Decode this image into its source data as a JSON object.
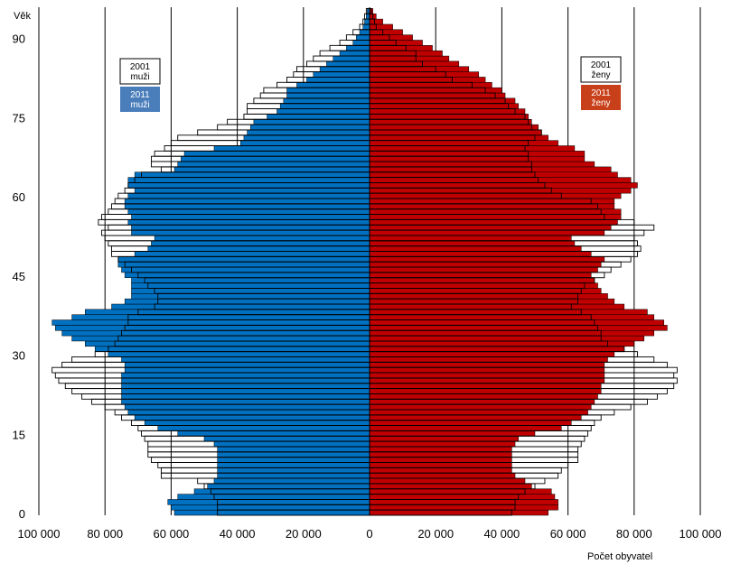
{
  "chart_data": {
    "type": "bar",
    "subtype": "population-pyramid",
    "title": "",
    "ylabel": "Věk",
    "xlabel": "Počet obyvatel",
    "xlim": [
      -100000,
      100000
    ],
    "ylim": [
      0,
      95
    ],
    "x_ticks": [
      -100000,
      -80000,
      -60000,
      -40000,
      -20000,
      0,
      20000,
      40000,
      60000,
      80000,
      100000
    ],
    "x_tick_labels": [
      "100 000",
      "80 000",
      "60 000",
      "40 000",
      "20 000",
      "0",
      "20 000",
      "40 000",
      "60 000",
      "80 000",
      "100 000"
    ],
    "y_ticks": [
      0,
      15,
      30,
      45,
      60,
      75,
      90
    ],
    "y_tick_labels": [
      "0",
      "15",
      "30",
      "45",
      "60",
      "75",
      "90"
    ],
    "grid": "vertical",
    "ages": [
      0,
      1,
      2,
      3,
      4,
      5,
      6,
      7,
      8,
      9,
      10,
      11,
      12,
      13,
      14,
      15,
      16,
      17,
      18,
      19,
      20,
      21,
      22,
      23,
      24,
      25,
      26,
      27,
      28,
      29,
      30,
      31,
      32,
      33,
      34,
      35,
      36,
      37,
      38,
      39,
      40,
      41,
      42,
      43,
      44,
      45,
      46,
      47,
      48,
      49,
      50,
      51,
      52,
      53,
      54,
      55,
      56,
      57,
      58,
      59,
      60,
      61,
      62,
      63,
      64,
      65,
      66,
      67,
      68,
      69,
      70,
      71,
      72,
      73,
      74,
      75,
      76,
      77,
      78,
      79,
      80,
      81,
      82,
      83,
      84,
      85,
      86,
      87,
      88,
      89,
      90,
      91,
      92,
      93,
      94,
      95
    ],
    "series": [
      {
        "name": "2011 muži",
        "side": "left",
        "color": "#0070c0",
        "values": [
          59000,
          60000,
          61000,
          58000,
          53000,
          49000,
          47000,
          46000,
          46000,
          46000,
          46000,
          46000,
          46000,
          47000,
          50000,
          58000,
          64000,
          68000,
          71000,
          73000,
          74000,
          75000,
          75000,
          75000,
          75000,
          75000,
          75000,
          74000,
          74000,
          75000,
          79000,
          83000,
          86000,
          90000,
          93000,
          95000,
          96000,
          90000,
          86000,
          78000,
          74000,
          72000,
          72000,
          72000,
          72000,
          74000,
          75000,
          76000,
          76000,
          71000,
          67000,
          66000,
          65000,
          72000,
          72000,
          73000,
          72000,
          73000,
          74000,
          74000,
          73000,
          71000,
          73000,
          73000,
          71000,
          59000,
          58000,
          57000,
          56000,
          47000,
          39000,
          38000,
          37000,
          36000,
          35000,
          31000,
          28000,
          27000,
          26000,
          25000,
          25000,
          22000,
          19000,
          17000,
          15000,
          13000,
          11000,
          9000,
          7000,
          5000,
          4000,
          3000,
          2000,
          1500,
          1000,
          700
        ]
      },
      {
        "name": "2001 muži",
        "side": "left",
        "color": "#ffffff",
        "values": [
          46000,
          46000,
          46000,
          47000,
          48000,
          50000,
          52000,
          63000,
          63000,
          64000,
          66000,
          67000,
          67000,
          67000,
          68000,
          69000,
          70000,
          72000,
          75000,
          77000,
          80000,
          84000,
          87000,
          90000,
          92000,
          94000,
          95000,
          96000,
          93000,
          90000,
          83000,
          79000,
          77000,
          76000,
          75000,
          74000,
          73000,
          73000,
          70000,
          65000,
          64000,
          64000,
          65000,
          67000,
          68000,
          70000,
          72000,
          74000,
          76000,
          78000,
          78000,
          79000,
          80000,
          81000,
          79000,
          82000,
          81000,
          79000,
          78000,
          77000,
          76000,
          74000,
          73000,
          71000,
          69000,
          63000,
          66000,
          66000,
          65000,
          62000,
          60000,
          58000,
          52000,
          46000,
          43000,
          38000,
          37000,
          37000,
          35000,
          33000,
          32000,
          28000,
          25000,
          23000,
          22000,
          19000,
          17000,
          15000,
          12000,
          9000,
          7000,
          5000,
          3000,
          2000,
          1500,
          1000
        ]
      },
      {
        "name": "2011 ženy",
        "side": "right",
        "color": "#c00000",
        "values": [
          54000,
          57000,
          57000,
          56000,
          55000,
          49000,
          47000,
          44000,
          43000,
          43000,
          43000,
          43000,
          43000,
          44000,
          45000,
          50000,
          58000,
          61000,
          64000,
          66000,
          67000,
          68000,
          69000,
          70000,
          70000,
          71000,
          71000,
          71000,
          71000,
          72000,
          74000,
          77000,
          80000,
          83000,
          86000,
          90000,
          89000,
          86000,
          84000,
          77000,
          74000,
          72000,
          70000,
          69000,
          68000,
          67000,
          69000,
          70000,
          71000,
          67000,
          64000,
          62000,
          61000,
          71000,
          73000,
          75000,
          76000,
          76000,
          74000,
          74000,
          76000,
          79000,
          81000,
          79000,
          75000,
          73000,
          68000,
          65000,
          65000,
          62000,
          57000,
          54000,
          52000,
          51000,
          49000,
          48000,
          47000,
          45000,
          44000,
          41000,
          40000,
          37000,
          35000,
          33000,
          30000,
          27000,
          24000,
          22000,
          19000,
          16000,
          13000,
          10000,
          7000,
          4000,
          2000,
          1000
        ]
      },
      {
        "name": "2001 ženy",
        "side": "right",
        "color": "#ffffff",
        "values": [
          43000,
          44000,
          44000,
          45000,
          47000,
          50000,
          53000,
          57000,
          58000,
          60000,
          63000,
          63000,
          63000,
          64000,
          65000,
          66000,
          67000,
          68000,
          70000,
          74000,
          79000,
          84000,
          87000,
          90000,
          92000,
          93000,
          92000,
          93000,
          90000,
          86000,
          81000,
          77000,
          72000,
          70000,
          70000,
          69000,
          68000,
          67000,
          64000,
          61000,
          63000,
          63000,
          64000,
          65000,
          68000,
          71000,
          73000,
          76000,
          79000,
          81000,
          82000,
          81000,
          80000,
          83000,
          86000,
          80000,
          71000,
          70000,
          69000,
          67000,
          58000,
          55000,
          53000,
          51000,
          50000,
          49000,
          49000,
          48000,
          48000,
          47000,
          48000,
          50000,
          52000,
          49000,
          48000,
          47000,
          44000,
          42000,
          41000,
          38000,
          35000,
          31000,
          25000,
          23000,
          20000,
          16000,
          14000,
          14000,
          11000,
          8000,
          6000,
          4000,
          2000,
          1500,
          1000,
          500
        ]
      }
    ],
    "legend": [
      {
        "year": "2001",
        "label": "muži",
        "side": "left"
      },
      {
        "year": "2011",
        "label": "muži",
        "side": "left"
      },
      {
        "year": "2001",
        "label": "ženy",
        "side": "right"
      },
      {
        "year": "2011",
        "label": "ženy",
        "side": "right"
      }
    ],
    "colors": {
      "male_2011": "#0070c0",
      "female_2011": "#c00000",
      "legend_male_2011": "#4a7ebb",
      "legend_female_2011": "#c8401a",
      "outline": "#000000",
      "grid": "#000000"
    }
  }
}
